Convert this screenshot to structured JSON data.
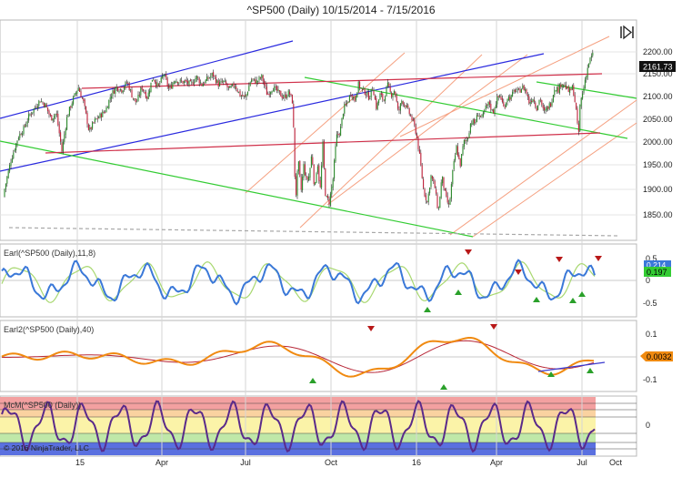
{
  "header": {
    "title": "^SP500 (Daily)  10/15/2014 - 7/15/2016"
  },
  "footer": {
    "copyright": "© 2016 NinjaTrader, LLC"
  },
  "colors": {
    "candle_up": "#2a8a2a",
    "candle_down": "#c0203a",
    "wick": "#222222",
    "blue_channel": "#2a2adf",
    "green_channel": "#33cc33",
    "red_line": "#d0304a",
    "orange_fan": "#f5a080",
    "fast_osc": "#3a78d8",
    "slow_osc": "#a8d870",
    "earl2_line": "#f08a10",
    "earl2_signal": "#b82838",
    "mcm_line": "#5a2a8a",
    "current_badge": "#111111",
    "badge_text": "#ffffff",
    "up_arrow": "#2aa02a",
    "down_arrow": "#b81818",
    "zone_red": "#f3a0a0",
    "zone_orange": "#fad2a0",
    "zone_yellow": "#fbf3a8",
    "zone_green": "#bfe8a8",
    "zone_blue": "#5a70e0"
  },
  "icons": {
    "toolbar": "collapse-panel-icon"
  },
  "chart_data": [
    {
      "type": "candlestick",
      "title": "^SP500 (Daily)  10/15/2014 - 7/15/2016",
      "x_tick_labels": [
        "15",
        "Apr",
        "Jul",
        "Oct",
        "16",
        "Apr",
        "Jul",
        "Oct"
      ],
      "y_tick_labels": [
        "1850.00",
        "1900.00",
        "1950.00",
        "2000.00",
        "2050.00",
        "2100.00",
        "2150.00",
        "2200.00"
      ],
      "ylim": [
        1810,
        2225
      ],
      "current_value": "2161.73",
      "close_path_anchors": [
        [
          0,
          1830
        ],
        [
          5,
          1905
        ],
        [
          12,
          1960
        ],
        [
          20,
          2005
        ],
        [
          26,
          2020
        ],
        [
          32,
          2045
        ],
        [
          38,
          2060
        ],
        [
          44,
          2075
        ],
        [
          50,
          2065
        ],
        [
          56,
          2040
        ],
        [
          62,
          2050
        ],
        [
          68,
          1978
        ],
        [
          74,
          2045
        ],
        [
          80,
          2075
        ],
        [
          86,
          2100
        ],
        [
          92,
          2070
        ],
        [
          98,
          2015
        ],
        [
          104,
          2035
        ],
        [
          110,
          2045
        ],
        [
          116,
          2055
        ],
        [
          122,
          2085
        ],
        [
          128,
          2100
        ],
        [
          134,
          2095
        ],
        [
          140,
          2110
        ],
        [
          146,
          2080
        ],
        [
          150,
          2070
        ],
        [
          156,
          2100
        ],
        [
          162,
          2080
        ],
        [
          168,
          2120
        ],
        [
          174,
          2100
        ],
        [
          180,
          2125
        ],
        [
          186,
          2095
        ],
        [
          192,
          2115
        ],
        [
          198,
          2110
        ],
        [
          204,
          2110
        ],
        [
          210,
          2105
        ],
        [
          216,
          2120
        ],
        [
          222,
          2105
        ],
        [
          228,
          2115
        ],
        [
          234,
          2125
        ],
        [
          240,
          2105
        ],
        [
          246,
          2110
        ],
        [
          252,
          2095
        ],
        [
          258,
          2105
        ],
        [
          264,
          2085
        ],
        [
          270,
          2080
        ],
        [
          276,
          2115
        ],
        [
          282,
          2110
        ],
        [
          288,
          2120
        ],
        [
          294,
          2085
        ],
        [
          300,
          2100
        ],
        [
          306,
          2090
        ],
        [
          312,
          2080
        ],
        [
          318,
          2090
        ],
        [
          322,
          2070
        ],
        [
          325,
          1880
        ],
        [
          328,
          1960
        ],
        [
          331,
          1900
        ],
        [
          334,
          1950
        ],
        [
          337,
          1920
        ],
        [
          340,
          1930
        ],
        [
          343,
          1975
        ],
        [
          346,
          1900
        ],
        [
          349,
          1960
        ],
        [
          352,
          1900
        ],
        [
          355,
          1990
        ],
        [
          358,
          1890
        ],
        [
          362,
          1880
        ],
        [
          366,
          1920
        ],
        [
          370,
          2005
        ],
        [
          374,
          2015
        ],
        [
          378,
          2060
        ],
        [
          382,
          2070
        ],
        [
          386,
          2090
        ],
        [
          390,
          2075
        ],
        [
          394,
          2105
        ],
        [
          398,
          2095
        ],
        [
          402,
          2090
        ],
        [
          406,
          2080
        ],
        [
          410,
          2100
        ],
        [
          414,
          2060
        ],
        [
          418,
          2085
        ],
        [
          422,
          2075
        ],
        [
          426,
          2105
        ],
        [
          430,
          2085
        ],
        [
          434,
          2095
        ],
        [
          438,
          2050
        ],
        [
          442,
          2075
        ],
        [
          446,
          2065
        ],
        [
          450,
          2050
        ],
        [
          454,
          2035
        ],
        [
          458,
          2010
        ],
        [
          462,
          1960
        ],
        [
          466,
          1900
        ],
        [
          470,
          1880
        ],
        [
          474,
          1930
        ],
        [
          478,
          1910
        ],
        [
          482,
          1860
        ],
        [
          486,
          1930
        ],
        [
          490,
          1890
        ],
        [
          494,
          1870
        ],
        [
          498,
          1940
        ],
        [
          502,
          1985
        ],
        [
          506,
          1950
        ],
        [
          510,
          1995
        ],
        [
          514,
          2000
        ],
        [
          518,
          2035
        ],
        [
          522,
          2030
        ],
        [
          526,
          2050
        ],
        [
          530,
          2040
        ],
        [
          534,
          2060
        ],
        [
          538,
          2070
        ],
        [
          542,
          2050
        ],
        [
          546,
          2075
        ],
        [
          550,
          2085
        ],
        [
          554,
          2060
        ],
        [
          558,
          2080
        ],
        [
          562,
          2080
        ],
        [
          566,
          2095
        ],
        [
          570,
          2090
        ],
        [
          574,
          2100
        ],
        [
          578,
          2095
        ],
        [
          582,
          2070
        ],
        [
          586,
          2080
        ],
        [
          590,
          2060
        ],
        [
          594,
          2080
        ],
        [
          598,
          2050
        ],
        [
          602,
          2060
        ],
        [
          606,
          2070
        ],
        [
          610,
          2100
        ],
        [
          614,
          2095
        ],
        [
          618,
          2110
        ],
        [
          622,
          2100
        ],
        [
          626,
          2090
        ],
        [
          630,
          2100
        ],
        [
          634,
          2050
        ],
        [
          636,
          2000
        ],
        [
          638,
          2070
        ],
        [
          641,
          2090
        ],
        [
          644,
          2120
        ],
        [
          648,
          2150
        ],
        [
          652,
          2162
        ]
      ]
    },
    {
      "type": "line",
      "title": "Earl(^SP500 (Daily),11,8)",
      "y_tick_labels": [
        "0.5",
        "0",
        "-0.5"
      ],
      "ylim": [
        -0.75,
        0.62
      ],
      "current_value": "0.197",
      "current_value_2": "0.214"
    },
    {
      "type": "line",
      "title": "Earl2(^SP500 (Daily),40)",
      "y_tick_labels": [
        "0.1",
        "0",
        "-0.1"
      ],
      "ylim": [
        -0.14,
        0.135
      ],
      "current_value": "0.0032"
    },
    {
      "type": "line",
      "title": "McM(^SP500 (Daily))",
      "y_tick_labels": [
        "0"
      ],
      "ylim": [
        -5,
        5
      ]
    }
  ]
}
